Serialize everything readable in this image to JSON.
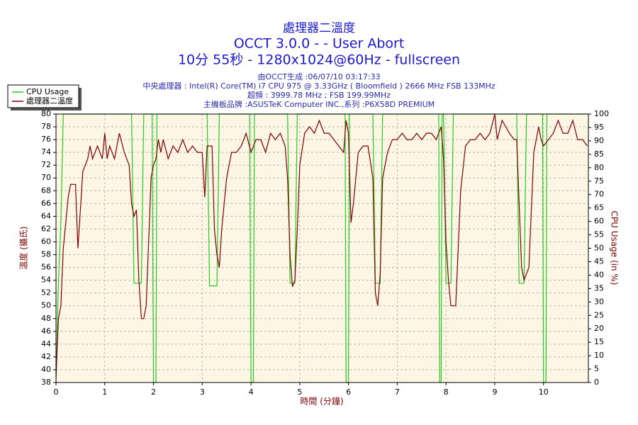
{
  "chart_data": {
    "type": "line",
    "title": "處理器二溫度",
    "subtitle": [
      "OCCT 3.0.0 -  - User Abort",
      "10分 55秒 - 1280x1024@60Hz - fullscreen"
    ],
    "info": [
      "由OCCT生成 :06/07/10 03:17:33",
      "中央處理器 : Intel(R) Core(TM) i7 CPU 975 @ 3.33GHz ( Bloomfield ) 2666 MHz FSB 133MHz",
      "超頻 : 3999.78 MHz ; FSB 199.99MHz",
      "主機板品牌 :ASUSTeK Computer INC.,系列 :P6X58D PREMIUM"
    ],
    "xlabel": "時間 (分鐘)",
    "ylabel": "溫度 (攝氏)",
    "y2label": "CPU Usage (in %)",
    "xlim": [
      0,
      10.92
    ],
    "ylim": [
      38,
      80
    ],
    "y2lim": [
      0,
      100
    ],
    "xticks": [
      0,
      1,
      2,
      3,
      4,
      5,
      6,
      7,
      8,
      9,
      10
    ],
    "yticks": [
      38,
      40,
      42,
      44,
      46,
      48,
      50,
      52,
      54,
      56,
      58,
      60,
      62,
      64,
      66,
      68,
      70,
      72,
      74,
      76,
      78,
      80
    ],
    "y2ticks": [
      0,
      5,
      10,
      15,
      20,
      25,
      30,
      35,
      40,
      45,
      50,
      55,
      60,
      65,
      70,
      75,
      80,
      85,
      90,
      95,
      100
    ],
    "grid": true,
    "legend": "top-left",
    "series": [
      {
        "name": "CPU Usage",
        "color": "#22cc22",
        "axis": "y2",
        "x": [
          0,
          0.05,
          0.1,
          0.15,
          1.55,
          1.6,
          1.75,
          1.8,
          1.97,
          2.0,
          2.05,
          2.07,
          3.1,
          3.15,
          3.3,
          3.35,
          3.97,
          4.0,
          4.05,
          4.07,
          4.75,
          4.8,
          4.9,
          4.95,
          5.93,
          5.95,
          6.0,
          6.02,
          6.5,
          6.55,
          6.65,
          6.7,
          7.85,
          7.87,
          7.9,
          7.92,
          7.95,
          8.0,
          8.1,
          8.15,
          9.45,
          9.5,
          9.6,
          9.65,
          9.98,
          10.0,
          10.05,
          10.07,
          10.92
        ],
        "values": [
          0,
          37,
          60,
          100,
          100,
          37,
          37,
          100,
          100,
          0,
          0,
          100,
          100,
          36,
          36,
          100,
          100,
          0,
          0,
          100,
          100,
          37,
          37,
          100,
          100,
          0,
          0,
          100,
          100,
          37,
          37,
          100,
          100,
          0,
          0,
          100,
          100,
          37,
          37,
          100,
          100,
          37,
          37,
          100,
          100,
          0,
          0,
          100,
          100
        ]
      },
      {
        "name": "處理器二溫度",
        "color": "#800000",
        "x": [
          0,
          0.05,
          0.1,
          0.15,
          0.2,
          0.25,
          0.3,
          0.4,
          0.45,
          0.5,
          0.55,
          0.65,
          0.7,
          0.75,
          0.85,
          0.95,
          1.0,
          1.05,
          1.1,
          1.2,
          1.3,
          1.4,
          1.5,
          1.55,
          1.6,
          1.65,
          1.7,
          1.75,
          1.8,
          1.85,
          1.9,
          1.95,
          2.0,
          2.05,
          2.1,
          2.15,
          2.2,
          2.3,
          2.4,
          2.5,
          2.6,
          2.7,
          2.8,
          2.9,
          3.0,
          3.05,
          3.1,
          3.2,
          3.25,
          3.3,
          3.35,
          3.4,
          3.5,
          3.6,
          3.7,
          3.8,
          3.9,
          4.0,
          4.1,
          4.2,
          4.3,
          4.4,
          4.5,
          4.6,
          4.7,
          4.75,
          4.8,
          4.85,
          4.9,
          4.95,
          5.0,
          5.1,
          5.2,
          5.3,
          5.4,
          5.5,
          5.6,
          5.7,
          5.8,
          5.9,
          5.95,
          6.0,
          6.05,
          6.1,
          6.2,
          6.3,
          6.4,
          6.5,
          6.55,
          6.6,
          6.65,
          6.7,
          6.8,
          6.9,
          7.0,
          7.1,
          7.2,
          7.3,
          7.4,
          7.5,
          7.6,
          7.7,
          7.8,
          7.9,
          7.95,
          8.0,
          8.05,
          8.1,
          8.2,
          8.3,
          8.4,
          8.5,
          8.6,
          8.7,
          8.8,
          8.9,
          9.0,
          9.05,
          9.15,
          9.3,
          9.4,
          9.45,
          9.5,
          9.55,
          9.6,
          9.7,
          9.8,
          9.9,
          9.95,
          10.0,
          10.1,
          10.2,
          10.3,
          10.4,
          10.5,
          10.6,
          10.7,
          10.8,
          10.9
        ],
        "values": [
          39,
          48,
          50,
          59,
          63,
          67,
          69,
          69,
          59,
          65,
          71,
          73,
          75,
          73,
          75,
          73,
          77,
          73,
          75,
          73,
          77,
          74,
          72,
          66,
          64,
          65,
          54,
          48,
          48,
          50,
          60,
          70,
          72,
          73,
          76,
          74,
          76,
          73,
          75,
          74,
          76,
          74,
          75,
          74,
          74,
          67,
          75,
          75,
          62,
          58,
          56,
          62,
          70,
          74,
          74,
          75,
          77,
          74,
          76,
          76,
          74,
          77,
          76,
          77,
          75,
          70,
          58,
          53,
          54,
          62,
          72,
          77,
          78,
          77,
          79,
          77,
          77,
          76,
          75,
          74,
          79,
          77,
          63,
          66,
          74,
          75,
          75,
          70,
          52,
          50,
          55,
          70,
          74,
          76,
          76,
          77,
          76,
          76,
          77,
          76,
          77,
          77,
          76,
          78,
          73,
          60,
          54,
          50,
          50,
          68,
          75,
          76,
          76,
          77,
          76,
          77,
          80,
          76,
          79,
          77,
          76,
          76,
          66,
          56,
          54,
          56,
          74,
          78,
          76,
          75,
          76,
          77,
          79,
          77,
          77,
          79,
          76,
          76,
          75
        ]
      }
    ]
  }
}
